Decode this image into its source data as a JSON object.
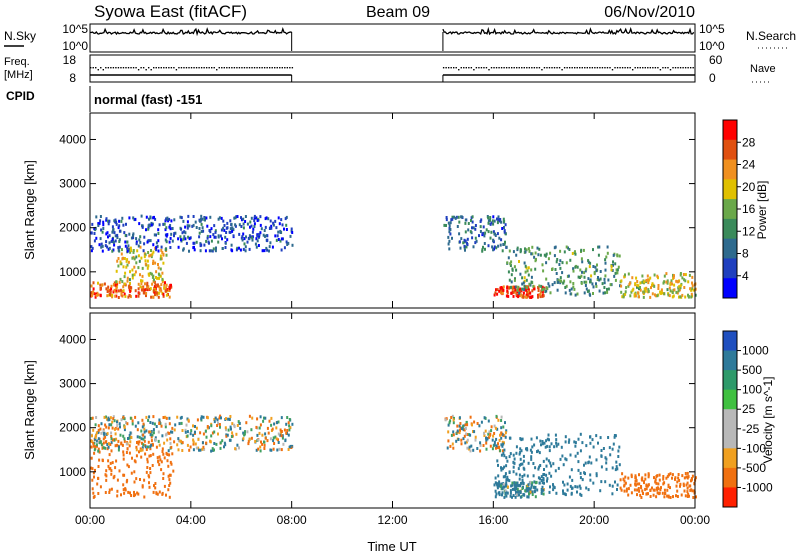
{
  "header": {
    "station": "Syowa East (fitACF)",
    "beam": "Beam 09",
    "date": "06/Nov/2010"
  },
  "meta_panels": {
    "nsky_label": "N.Sky",
    "nsky_ticks": [
      "10^5",
      "10^0"
    ],
    "nsearch_label": "N.Search",
    "nsearch_ticks": [
      "10^5",
      "10^0"
    ],
    "freq_label_1": "Freq.",
    "freq_label_2": "[MHz]",
    "freq_ticks": [
      "18",
      "8"
    ],
    "nave_label": "Nave",
    "nave_ticks": [
      "60",
      "0"
    ],
    "cpid_label": "CPID",
    "cpid_value": "normal (fast) -151"
  },
  "chart_data": [
    {
      "type": "heatmap",
      "name": "power",
      "ylabel": "Slant Range [km]",
      "xlabel": "Time UT",
      "ylim": [
        180,
        4600
      ],
      "xlim": [
        0,
        24
      ],
      "x_ticks": [
        "00:00",
        "04:00",
        "08:00",
        "12:00",
        "16:00",
        "20:00",
        "00:00"
      ],
      "y_ticks": [
        "1000",
        "2000",
        "3000",
        "4000"
      ],
      "colorbar": {
        "label": "Power [dB]",
        "ticks": [
          "28",
          "24",
          "20",
          "16",
          "12",
          "8",
          "4"
        ],
        "range": [
          0,
          30
        ]
      },
      "data_gaps": [
        [
          8,
          14
        ]
      ],
      "echo_regions": [
        {
          "t": [
            0.0,
            3.2
          ],
          "r": [
            450,
            800
          ],
          "value": 24
        },
        {
          "t": [
            1.0,
            3.0
          ],
          "r": [
            800,
            1600
          ],
          "value": 18
        },
        {
          "t": [
            0.0,
            8.0
          ],
          "r": [
            1500,
            2300
          ],
          "value": 6
        },
        {
          "t": [
            14.0,
            16.5
          ],
          "r": [
            1500,
            2300
          ],
          "value": 8
        },
        {
          "t": [
            16.0,
            18.0
          ],
          "r": [
            450,
            700
          ],
          "value": 26
        },
        {
          "t": [
            16.5,
            21.0
          ],
          "r": [
            500,
            1600
          ],
          "value": 12
        },
        {
          "t": [
            21.0,
            24.0
          ],
          "r": [
            450,
            1000
          ],
          "value": 18
        }
      ]
    },
    {
      "type": "heatmap",
      "name": "velocity",
      "ylabel": "Slant Range [km]",
      "xlabel": "Time UT",
      "ylim": [
        180,
        4600
      ],
      "xlim": [
        0,
        24
      ],
      "x_ticks": [
        "00:00",
        "04:00",
        "08:00",
        "12:00",
        "16:00",
        "20:00",
        "00:00"
      ],
      "y_ticks": [
        "1000",
        "2000",
        "3000",
        "4000"
      ],
      "colorbar": {
        "label": "Velocity [m s^-1]",
        "ticks": [
          "1000",
          "500",
          "100",
          "25",
          "-25",
          "-100",
          "-500",
          "-1000"
        ],
        "range": [
          -1000,
          1000
        ]
      },
      "data_gaps": [
        [
          8,
          14
        ]
      ],
      "echo_regions": [
        {
          "t": [
            0.0,
            3.3
          ],
          "r": [
            450,
            1800
          ],
          "value": -300
        },
        {
          "t": [
            0.0,
            8.0
          ],
          "r": [
            1500,
            2300
          ],
          "value": 0
        },
        {
          "t": [
            14.0,
            16.5
          ],
          "r": [
            1500,
            2300
          ],
          "value": 0
        },
        {
          "t": [
            16.0,
            21.0
          ],
          "r": [
            500,
            1900
          ],
          "value": 300
        },
        {
          "t": [
            16.0,
            18.0
          ],
          "r": [
            450,
            800
          ],
          "value": 150
        },
        {
          "t": [
            21.0,
            24.0
          ],
          "r": [
            450,
            1000
          ],
          "value": -300
        }
      ]
    }
  ]
}
